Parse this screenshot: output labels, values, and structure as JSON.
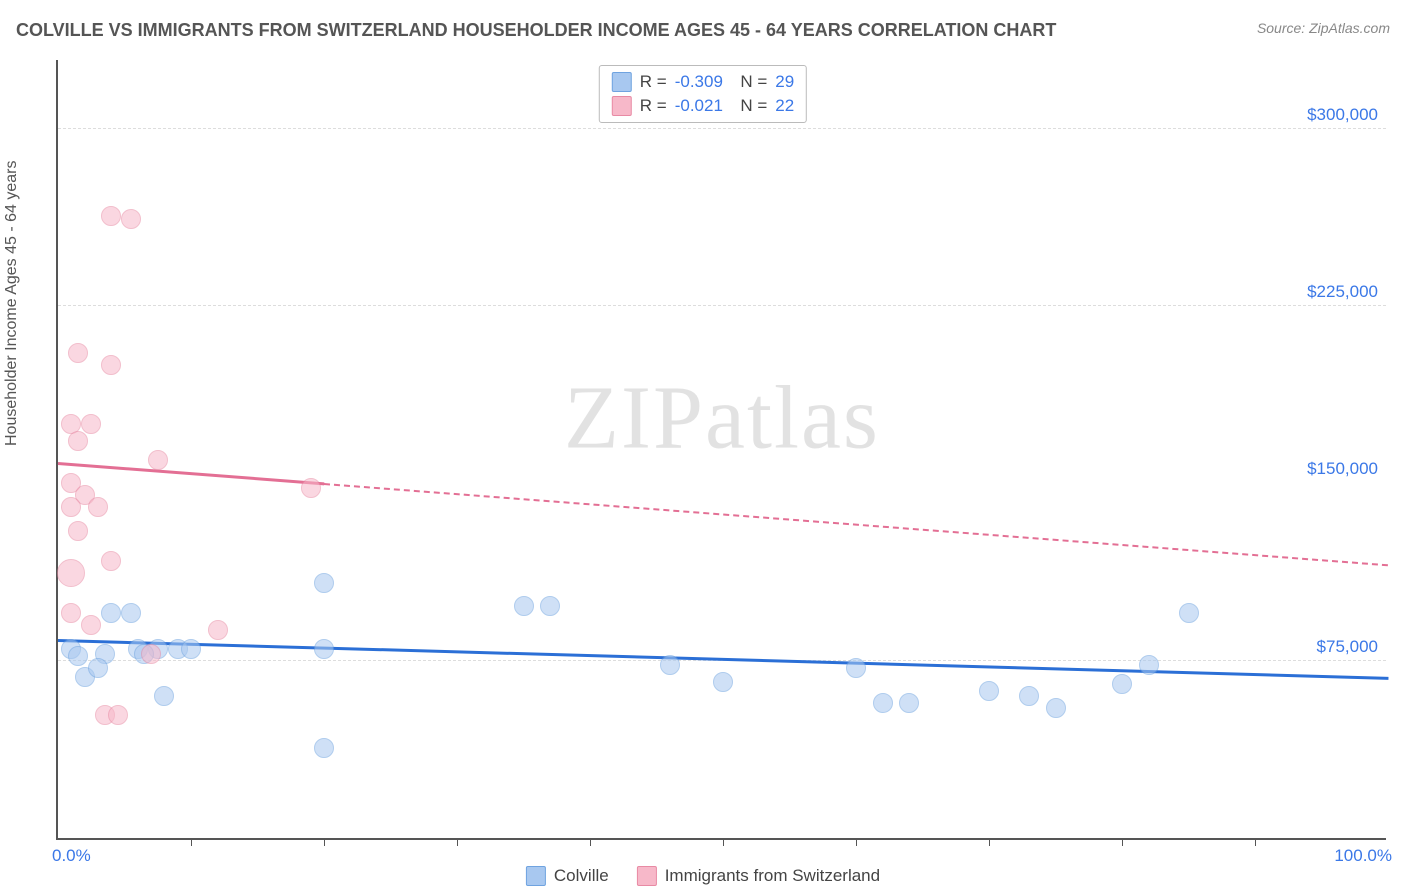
{
  "title": "COLVILLE VS IMMIGRANTS FROM SWITZERLAND HOUSEHOLDER INCOME AGES 45 - 64 YEARS CORRELATION CHART",
  "source": "Source: ZipAtlas.com",
  "watermark": "ZIPatlas",
  "chart": {
    "type": "scatter",
    "x_axis": {
      "min": 0,
      "max": 100,
      "label_min": "0.0%",
      "label_max": "100.0%",
      "tick_step": 10
    },
    "y_axis": {
      "min": 0,
      "max": 330000,
      "label": "Householder Income Ages 45 - 64 years",
      "grid_values": [
        75000,
        225000,
        300000
      ],
      "grid_labels": [
        "$75,000",
        "$225,000",
        "$300,000"
      ],
      "mid_value": 150000,
      "mid_label": "$150,000"
    },
    "background_color": "#ffffff",
    "grid_color": "#dddddd",
    "axis_color": "#555555",
    "label_color": "#3b78e7",
    "point_radius": 10,
    "point_opacity": 0.55,
    "series": [
      {
        "name": "Colville",
        "color_fill": "#a8c8f0",
        "color_stroke": "#6fa3e0",
        "R": "-0.309",
        "N": "29",
        "trend": {
          "y_at_x0": 83000,
          "y_at_x100": 67000,
          "solid_until_x": 100,
          "color": "#2b6fd6"
        },
        "points": [
          {
            "x": 1.0,
            "y": 80000
          },
          {
            "x": 3.5,
            "y": 78000
          },
          {
            "x": 2.0,
            "y": 68000
          },
          {
            "x": 4.0,
            "y": 95000
          },
          {
            "x": 5.5,
            "y": 95000
          },
          {
            "x": 6.0,
            "y": 80000
          },
          {
            "x": 7.5,
            "y": 80000
          },
          {
            "x": 8.0,
            "y": 60000
          },
          {
            "x": 3.0,
            "y": 72000
          },
          {
            "x": 1.5,
            "y": 77000
          },
          {
            "x": 6.5,
            "y": 78000
          },
          {
            "x": 9.0,
            "y": 80000
          },
          {
            "x": 10.0,
            "y": 80000
          },
          {
            "x": 20.0,
            "y": 108000
          },
          {
            "x": 20.0,
            "y": 80000
          },
          {
            "x": 20.0,
            "y": 38000
          },
          {
            "x": 35.0,
            "y": 98000
          },
          {
            "x": 37.0,
            "y": 98000
          },
          {
            "x": 46.0,
            "y": 73000
          },
          {
            "x": 50.0,
            "y": 66000
          },
          {
            "x": 60.0,
            "y": 72000
          },
          {
            "x": 62.0,
            "y": 57000
          },
          {
            "x": 64.0,
            "y": 57000
          },
          {
            "x": 70.0,
            "y": 62000
          },
          {
            "x": 75.0,
            "y": 55000
          },
          {
            "x": 80.0,
            "y": 65000
          },
          {
            "x": 85.0,
            "y": 95000
          },
          {
            "x": 82.0,
            "y": 73000
          },
          {
            "x": 73.0,
            "y": 60000
          }
        ]
      },
      {
        "name": "Immigrants from Switzerland",
        "color_fill": "#f7b8c9",
        "color_stroke": "#e88aa4",
        "R": "-0.021",
        "N": "22",
        "trend": {
          "y_at_x0": 158000,
          "y_at_x100": 115000,
          "solid_until_x": 20,
          "color": "#e36f94"
        },
        "points": [
          {
            "x": 4.0,
            "y": 263000
          },
          {
            "x": 5.5,
            "y": 262000
          },
          {
            "x": 1.5,
            "y": 205000
          },
          {
            "x": 4.0,
            "y": 200000
          },
          {
            "x": 1.0,
            "y": 175000
          },
          {
            "x": 2.5,
            "y": 175000
          },
          {
            "x": 1.5,
            "y": 168000
          },
          {
            "x": 7.5,
            "y": 160000
          },
          {
            "x": 1.0,
            "y": 150000
          },
          {
            "x": 2.0,
            "y": 145000
          },
          {
            "x": 1.0,
            "y": 140000
          },
          {
            "x": 3.0,
            "y": 140000
          },
          {
            "x": 1.5,
            "y": 130000
          },
          {
            "x": 4.0,
            "y": 117000
          },
          {
            "x": 1.0,
            "y": 112000,
            "r": 14
          },
          {
            "x": 1.0,
            "y": 95000
          },
          {
            "x": 2.5,
            "y": 90000
          },
          {
            "x": 3.5,
            "y": 52000
          },
          {
            "x": 4.5,
            "y": 52000
          },
          {
            "x": 7.0,
            "y": 78000
          },
          {
            "x": 12.0,
            "y": 88000
          },
          {
            "x": 19.0,
            "y": 148000
          }
        ]
      }
    ]
  },
  "legend_bottom": [
    {
      "label": "Colville",
      "fill": "#a8c8f0",
      "stroke": "#6fa3e0"
    },
    {
      "label": "Immigrants from Switzerland",
      "fill": "#f7b8c9",
      "stroke": "#e88aa4"
    }
  ]
}
